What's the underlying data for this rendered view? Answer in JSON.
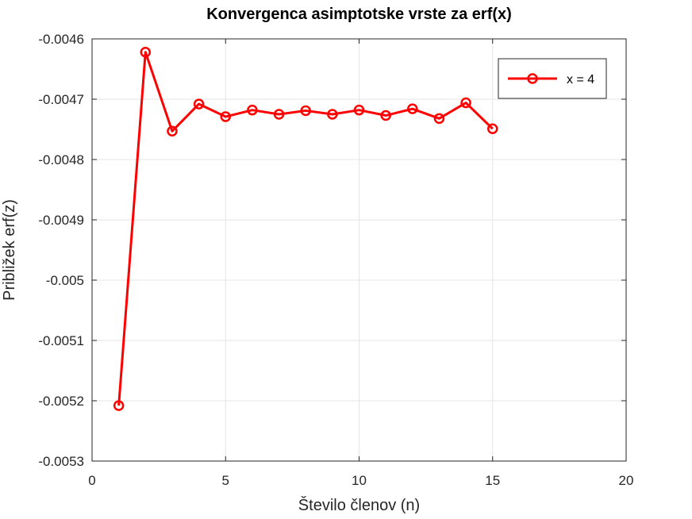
{
  "chart_data": {
    "type": "line",
    "title": "Konvergenca asimptotske vrste za erf(x)",
    "xlabel": "Število členov (n)",
    "ylabel": "Približek erf(z)",
    "xlim": [
      0,
      20
    ],
    "ylim": [
      -0.0053,
      -0.0046
    ],
    "xticks": [
      0,
      5,
      10,
      15,
      20
    ],
    "xtick_labels": [
      "0",
      "5",
      "10",
      "15",
      "20"
    ],
    "yticks": [
      -0.0053,
      -0.0052,
      -0.0051,
      -0.005,
      -0.0049,
      -0.0048,
      -0.0047,
      -0.0046
    ],
    "ytick_labels": [
      "-0.0053",
      "-0.0052",
      "-0.0051",
      "-0.005",
      "-0.0049",
      "-0.0048",
      "-0.0047",
      "-0.0046"
    ],
    "grid": true,
    "legend_position": "top-right",
    "series": [
      {
        "name": "x = 4",
        "color": "#ff0000",
        "marker": "circle",
        "x": [
          1,
          2,
          3,
          4,
          5,
          6,
          7,
          8,
          9,
          10,
          11,
          12,
          13,
          14,
          15
        ],
        "values": [
          -0.005208,
          -0.004622,
          -0.004753,
          -0.004708,
          -0.004729,
          -0.004718,
          -0.004725,
          -0.004719,
          -0.004725,
          -0.004718,
          -0.004727,
          -0.004716,
          -0.004732,
          -0.004706,
          -0.004749
        ]
      }
    ]
  }
}
